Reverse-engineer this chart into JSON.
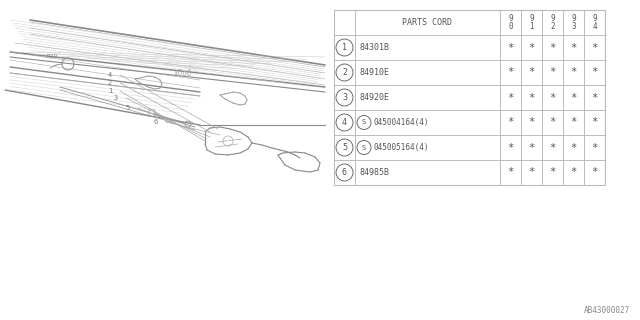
{
  "bg_color": "#ffffff",
  "header": "PARTS CORD",
  "years": [
    "9\n0",
    "9\n1",
    "9\n2",
    "9\n3",
    "9\n4"
  ],
  "rows": [
    {
      "num": "1",
      "part": "84301B",
      "special": false,
      "vals": [
        "*",
        "*",
        "*",
        "*",
        "*"
      ]
    },
    {
      "num": "2",
      "part": "84910E",
      "special": false,
      "vals": [
        "*",
        "*",
        "*",
        "*",
        "*"
      ]
    },
    {
      "num": "3",
      "part": "84920E",
      "special": false,
      "vals": [
        "*",
        "*",
        "*",
        "*",
        "*"
      ]
    },
    {
      "num": "4",
      "part": "045004164(4)",
      "special": true,
      "vals": [
        "*",
        "*",
        "*",
        "*",
        "*"
      ]
    },
    {
      "num": "5",
      "part": "045005164(4)",
      "special": true,
      "vals": [
        "*",
        "*",
        "*",
        "*",
        "*"
      ]
    },
    {
      "num": "6",
      "part": "84985B",
      "special": false,
      "vals": [
        "*",
        "*",
        "*",
        "*",
        "*"
      ]
    }
  ],
  "diagram_label": "AB43000027",
  "lc": "#aaaaaa",
  "tc": "#555555"
}
